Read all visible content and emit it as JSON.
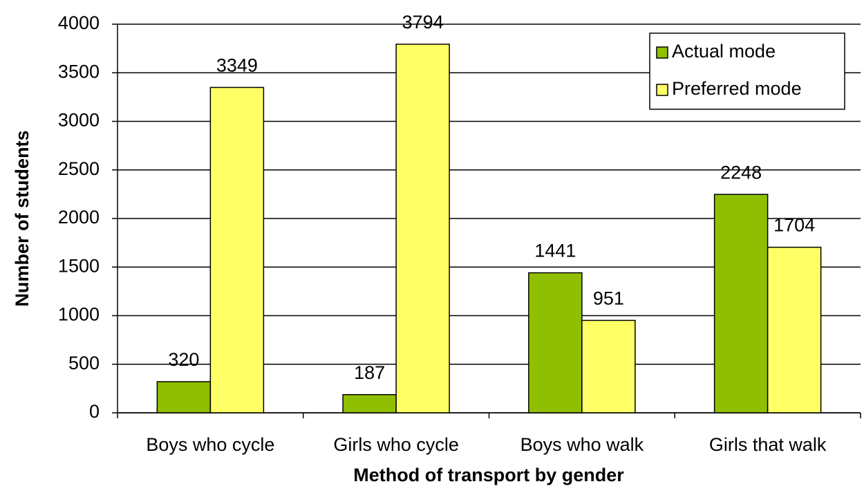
{
  "chart_data": {
    "type": "bar",
    "x_label": "Method of transport by gender",
    "y_label": "Number of students",
    "categories": [
      "Boys who cycle",
      "Girls who cycle",
      "Boys who walk",
      "Girls that walk"
    ],
    "series": [
      {
        "name": "Actual mode",
        "color": "#8fbf00",
        "values": [
          320,
          187,
          1441,
          2248
        ]
      },
      {
        "name": "Preferred mode",
        "color": "#ffff66",
        "values": [
          3349,
          3794,
          951,
          1704
        ]
      }
    ],
    "ylim": [
      0,
      4000
    ],
    "yticks": [
      0,
      500,
      1000,
      1500,
      2000,
      2500,
      3000,
      3500,
      4000
    ],
    "grid": true,
    "legend": "top-right"
  }
}
